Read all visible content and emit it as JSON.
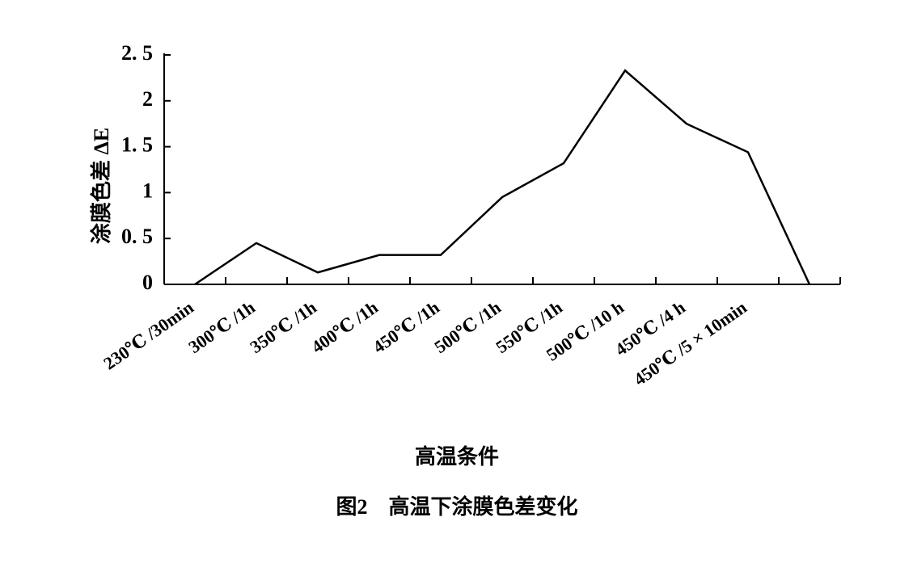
{
  "chart_data": {
    "type": "line",
    "y_label": "涂膜色差 ΔE",
    "x_label": "高温条件",
    "caption": "图2　高温下涂膜色差变化",
    "categories": [
      "230℃ /30min",
      "300℃ /1h",
      "350℃ /1h",
      "400℃ /1h",
      "450℃ /1h",
      "500℃ /1h",
      "550℃ /1h",
      "500℃ /10 h",
      "450℃ /4 h",
      "450℃ /5 × 10min",
      null
    ],
    "values": [
      0,
      0.45,
      0.13,
      0.32,
      0.32,
      0.95,
      1.32,
      2.33,
      1.75,
      1.44,
      0
    ],
    "color": "#000000",
    "ylim": [
      0,
      2.5
    ],
    "yticks": [
      0,
      {
        "value": 0.5,
        "label": "0. 5"
      },
      1,
      {
        "value": 1.5,
        "label": "1. 5"
      },
      2,
      {
        "value": 2.5,
        "label": "2. 5"
      }
    ]
  }
}
